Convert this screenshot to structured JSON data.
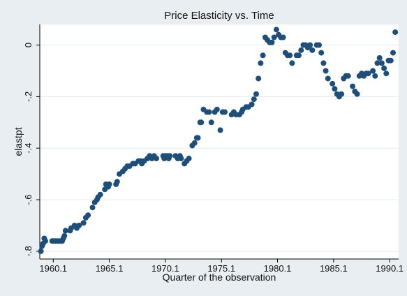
{
  "chart_data": {
    "type": "scatter",
    "title": "Price Elasticity vs. Time",
    "xlabel": "Quarter of the observation",
    "ylabel": "elastpt",
    "x_ticks": [
      1960.1,
      1965.1,
      1970.1,
      1975.1,
      1980.1,
      1985.1,
      1990.1
    ],
    "x_tick_labels": [
      "1960.1",
      "1965.1",
      "1970.1",
      "1975.1",
      "1980.1",
      "1985.1",
      "1990.1"
    ],
    "y_ticks": [
      0,
      -0.2,
      -0.4,
      -0.6,
      -0.8
    ],
    "y_tick_labels": [
      "0",
      "-.2",
      "-.4",
      "-.6",
      "-.8"
    ],
    "xlim": [
      1958.9,
      1990.9
    ],
    "ylim": [
      -0.83,
      0.08
    ],
    "grid": "horizontal",
    "marker_color": "#1f4e79",
    "background": "#e9eef3",
    "plot_background": "#ffffff",
    "series": [
      {
        "x": [
          1959.0,
          1959.1,
          1959.2,
          1959.3,
          1959.4,
          1960.0,
          1960.1,
          1960.3,
          1960.5,
          1960.7,
          1960.9,
          1961.0,
          1961.1,
          1961.2,
          1961.6,
          1961.7,
          1962.0,
          1962.2,
          1962.4,
          1962.8,
          1963.0,
          1963.2,
          1963.6,
          1963.8,
          1964.0,
          1964.1,
          1964.3,
          1964.7,
          1964.8,
          1965.0,
          1965.1,
          1965.7,
          1965.8,
          1966.0,
          1966.3,
          1966.5,
          1966.7,
          1966.9,
          1967.2,
          1967.4,
          1967.7,
          1967.9,
          1968.0,
          1968.2,
          1968.5,
          1968.7,
          1968.9,
          1969.1,
          1969.3,
          1969.9,
          1970.0,
          1970.1,
          1970.3,
          1970.4,
          1970.5,
          1971.0,
          1971.2,
          1971.4,
          1971.5,
          1971.8,
          1972.0,
          1972.2,
          1972.5,
          1972.7,
          1972.9,
          1973.0,
          1973.2,
          1973.3,
          1973.5,
          1973.8,
          1974.0,
          1974.2,
          1974.5,
          1974.7,
          1975.0,
          1975.2,
          1975.4,
          1976.0,
          1976.2,
          1976.4,
          1976.7,
          1976.9,
          1977.0,
          1977.3,
          1977.5,
          1977.8,
          1978.0,
          1978.2,
          1978.4,
          1978.6,
          1978.8,
          1979.0,
          1979.2,
          1979.4,
          1979.6,
          1979.8,
          1980.0,
          1980.2,
          1980.4,
          1980.6,
          1980.8,
          1981.0,
          1981.2,
          1981.4,
          1981.8,
          1982.0,
          1982.2,
          1982.4,
          1982.6,
          1982.8,
          1983.0,
          1983.2,
          1983.6,
          1983.8,
          1984.0,
          1984.2,
          1984.4,
          1984.6,
          1985.0,
          1985.2,
          1985.4,
          1985.6,
          1985.8,
          1986.0,
          1986.2,
          1986.4,
          1986.8,
          1987.0,
          1987.2,
          1987.4,
          1987.6,
          1987.8,
          1988.0,
          1988.2,
          1988.6,
          1988.8,
          1989.0,
          1989.2,
          1989.4,
          1989.6,
          1989.8,
          1990.0,
          1990.2,
          1990.4,
          1990.6
        ],
        "y": [
          -0.8,
          -0.78,
          -0.77,
          -0.75,
          -0.76,
          -0.76,
          -0.76,
          -0.76,
          -0.76,
          -0.76,
          -0.76,
          -0.75,
          -0.74,
          -0.72,
          -0.72,
          -0.71,
          -0.7,
          -0.71,
          -0.7,
          -0.69,
          -0.67,
          -0.66,
          -0.63,
          -0.61,
          -0.6,
          -0.59,
          -0.58,
          -0.56,
          -0.54,
          -0.55,
          -0.54,
          -0.54,
          -0.53,
          -0.5,
          -0.49,
          -0.48,
          -0.47,
          -0.47,
          -0.46,
          -0.46,
          -0.45,
          -0.45,
          -0.46,
          -0.45,
          -0.44,
          -0.43,
          -0.44,
          -0.43,
          -0.44,
          -0.43,
          -0.44,
          -0.43,
          -0.43,
          -0.44,
          -0.43,
          -0.43,
          -0.44,
          -0.43,
          -0.44,
          -0.46,
          -0.45,
          -0.44,
          -0.39,
          -0.38,
          -0.36,
          -0.36,
          -0.3,
          -0.3,
          -0.25,
          -0.26,
          -0.26,
          -0.3,
          -0.26,
          -0.25,
          -0.33,
          -0.26,
          -0.26,
          -0.27,
          -0.26,
          -0.27,
          -0.27,
          -0.26,
          -0.25,
          -0.24,
          -0.24,
          -0.23,
          -0.21,
          -0.19,
          -0.13,
          -0.07,
          -0.04,
          0.03,
          0.02,
          0.01,
          0.01,
          0.03,
          0.06,
          0.04,
          0.03,
          0.03,
          -0.03,
          -0.04,
          -0.04,
          -0.07,
          -0.04,
          -0.04,
          -0.02,
          0.0,
          0.0,
          -0.01,
          0.0,
          -0.02,
          0.0,
          0.0,
          -0.03,
          -0.07,
          -0.1,
          -0.13,
          -0.15,
          -0.17,
          -0.19,
          -0.2,
          -0.19,
          -0.13,
          -0.12,
          -0.12,
          -0.16,
          -0.18,
          -0.19,
          -0.12,
          -0.11,
          -0.12,
          -0.11,
          -0.11,
          -0.1,
          -0.12,
          -0.07,
          -0.05,
          -0.07,
          -0.09,
          -0.11,
          -0.06,
          -0.06,
          -0.03,
          0.05
        ]
      }
    ]
  }
}
